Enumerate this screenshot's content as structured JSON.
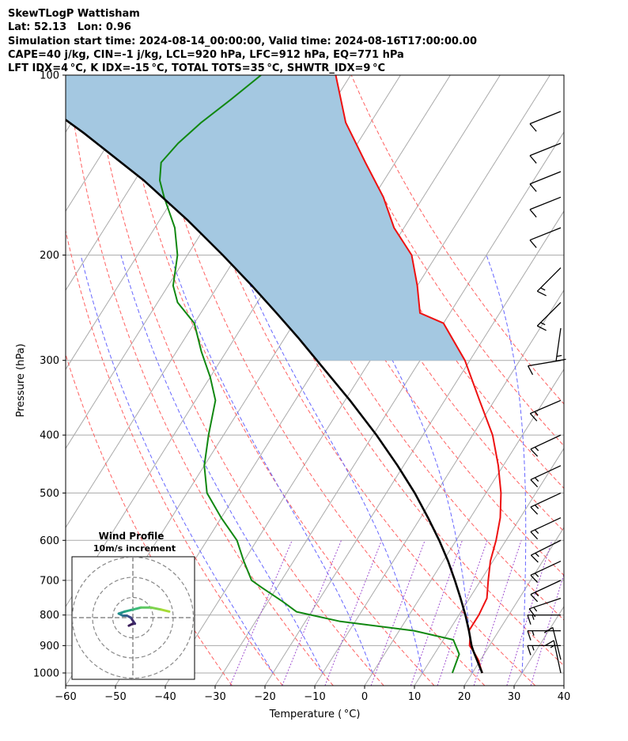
{
  "header": {
    "line1": "SkewTLogP Wattisham",
    "line2": "Lat: 52.13   Lon: 0.96",
    "line3": "Simulation start time: 2024-08-14_00:00:00, Valid time: 2024-08-16T17:00:00.00",
    "line4": "CAPE=40 j/kg, CIN=-1 j/kg, LCL=920 hPa, LFC=912 hPa, EQ=771 hPa",
    "line5": "LFT IDX=4 °C, K IDX=-15 °C, TOTAL TOTS=35 °C, SHWTR_IDX=9 °C"
  },
  "chart_data": [
    {
      "type": "line",
      "subtype": "skew-t log-p",
      "xlabel": "Temperature ( °C)",
      "ylabel": "Pressure (hPa)",
      "xlim": [
        -60,
        40
      ],
      "ylim": [
        1050,
        100
      ],
      "y_scale": "log",
      "x_ticks": [
        "−60",
        "−50",
        "−40",
        "−30",
        "−20",
        "−10",
        "0",
        "10",
        "20",
        "30",
        "40"
      ],
      "y_ticks": [
        "100",
        "200",
        "300",
        "400",
        "500",
        "600",
        "700",
        "800",
        "900",
        "1000"
      ],
      "grid": true,
      "series": [
        {
          "role": "temperature",
          "color": "#ee1111",
          "points": [
            [
              22,
              1000
            ],
            [
              19.5,
              950
            ],
            [
              17.5,
              920
            ],
            [
              16,
              900
            ],
            [
              15,
              870
            ],
            [
              14,
              850
            ],
            [
              14,
              800
            ],
            [
              13.5,
              750
            ],
            [
              11.5,
              700
            ],
            [
              9.5,
              650
            ],
            [
              8,
              600
            ],
            [
              6,
              550
            ],
            [
              3,
              500
            ],
            [
              -1,
              450
            ],
            [
              -6,
              400
            ],
            [
              -13,
              350
            ],
            [
              -21,
              300
            ],
            [
              -30,
              260
            ],
            [
              -36,
              250
            ],
            [
              -40,
              225
            ],
            [
              -45,
              200
            ],
            [
              -52,
              180
            ],
            [
              -58,
              160
            ],
            [
              -66,
              140
            ],
            [
              -75,
              120
            ],
            [
              -83,
              100
            ]
          ]
        },
        {
          "role": "dewpoint",
          "color": "#118811",
          "points": [
            [
              16,
              1000
            ],
            [
              15,
              930
            ],
            [
              12,
              880
            ],
            [
              3,
              850
            ],
            [
              -13,
              820
            ],
            [
              -23,
              790
            ],
            [
              -27,
              760
            ],
            [
              -33,
              720
            ],
            [
              -36,
              700
            ],
            [
              -40,
              650
            ],
            [
              -44,
              600
            ],
            [
              -50,
              550
            ],
            [
              -56,
              500
            ],
            [
              -60,
              450
            ],
            [
              -63,
              400
            ],
            [
              -66,
              350
            ],
            [
              -70,
              320
            ],
            [
              -75,
              290
            ],
            [
              -80,
              260
            ],
            [
              -86,
              240
            ],
            [
              -89,
              225
            ],
            [
              -92,
              200
            ],
            [
              -96,
              180
            ],
            [
              -102,
              160
            ],
            [
              -105,
              150
            ],
            [
              -107,
              140
            ],
            [
              -106,
              130
            ],
            [
              -104,
              120
            ],
            [
              -101,
              110
            ],
            [
              -98,
              100
            ]
          ]
        },
        {
          "role": "parcel",
          "color": "#000000",
          "points": [
            [
              22,
              1000
            ],
            [
              17.5,
              920
            ],
            [
              16.4,
              900
            ],
            [
              14,
              850
            ],
            [
              11.3,
              800
            ],
            [
              8.2,
              750
            ],
            [
              4.8,
              700
            ],
            [
              1,
              650
            ],
            [
              -3.4,
              600
            ],
            [
              -8.5,
              550
            ],
            [
              -14.3,
              500
            ],
            [
              -21.2,
              450
            ],
            [
              -29.3,
              400
            ],
            [
              -39,
              350
            ],
            [
              -50.7,
              300
            ],
            [
              -57.3,
              275
            ],
            [
              -64.8,
              250
            ],
            [
              -73.2,
              225
            ],
            [
              -82.9,
              200
            ],
            [
              -94.3,
              175
            ],
            [
              -108.2,
              150
            ],
            [
              -126.2,
              125
            ],
            [
              -137.7,
              112
            ],
            [
              -151.5,
              100
            ]
          ]
        }
      ],
      "shaded_region": {
        "name": "CAPE",
        "color": "#a4c8e1",
        "between": [
          "temperature",
          "parcel"
        ],
        "pressure_range": [
          300,
          100
        ]
      },
      "isotherms_every_c": 10,
      "dry_adiabats_c": [
        -30,
        -20,
        -10,
        0,
        10,
        20,
        30,
        40,
        50,
        60,
        70,
        80,
        90,
        100
      ],
      "moist_adiabats_c": [
        -20,
        -10,
        0,
        10,
        20,
        30,
        40
      ],
      "mixing_ratio_lines_gkg": [
        0.4,
        1,
        2,
        4,
        7,
        10,
        16,
        24,
        32
      ],
      "wind_barbs": [
        {
          "p": 1000,
          "u": 3,
          "v": -14
        },
        {
          "p": 950,
          "u": 3,
          "v": -12
        },
        {
          "p": 900,
          "u": 14,
          "v": 0
        },
        {
          "p": 850,
          "u": 15,
          "v": 0
        },
        {
          "p": 800,
          "u": 15,
          "v": 0
        },
        {
          "p": 750,
          "u": 15,
          "v": 5
        },
        {
          "p": 700,
          "u": 15,
          "v": 7
        },
        {
          "p": 650,
          "u": 15,
          "v": 7
        },
        {
          "p": 600,
          "u": 14,
          "v": 7
        },
        {
          "p": 550,
          "u": 15,
          "v": 7
        },
        {
          "p": 500,
          "u": 15,
          "v": 7
        },
        {
          "p": 450,
          "u": 15,
          "v": 7
        },
        {
          "p": 400,
          "u": 15,
          "v": 7
        },
        {
          "p": 350,
          "u": 14,
          "v": 6
        },
        {
          "p": 300,
          "u": 12,
          "v": 2
        },
        {
          "p": 265,
          "u": 2,
          "v": 14
        },
        {
          "p": 240,
          "u": 10,
          "v": 10
        },
        {
          "p": 210,
          "u": 10,
          "v": 10
        },
        {
          "p": 180,
          "u": 10,
          "v": 4
        },
        {
          "p": 160,
          "u": 10,
          "v": 4
        },
        {
          "p": 145,
          "u": 10,
          "v": 4
        },
        {
          "p": 130,
          "u": 10,
          "v": 4
        },
        {
          "p": 115,
          "u": 10,
          "v": 4
        }
      ]
    },
    {
      "type": "line",
      "subtype": "hodograph",
      "title": "Wind Profile",
      "subtitle": "10m/s increment",
      "ring_increment_ms": 10,
      "path": [
        [
          -2,
          -4
        ],
        [
          0,
          -3
        ],
        [
          1,
          -3
        ],
        [
          -1,
          0
        ],
        [
          -3,
          1
        ],
        [
          -5,
          1
        ],
        [
          -7,
          2
        ],
        [
          -4,
          3
        ],
        [
          0,
          4
        ],
        [
          4,
          5
        ],
        [
          9,
          5
        ],
        [
          14,
          4
        ],
        [
          18,
          3
        ]
      ]
    }
  ]
}
